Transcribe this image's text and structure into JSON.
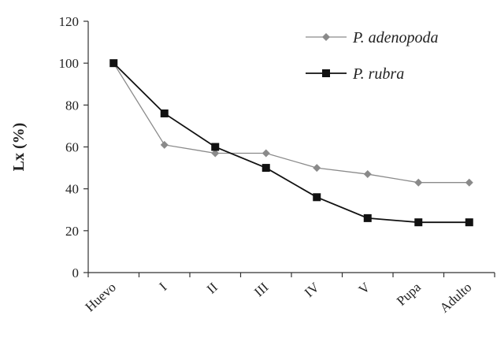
{
  "chart_data": {
    "type": "line",
    "categories": [
      "Huevo",
      "I",
      "II",
      "III",
      "IV",
      "V",
      "Pupa",
      "Adulto"
    ],
    "ylabel": "Lx (%)",
    "xlabel": "",
    "ylim": [
      0,
      120
    ],
    "yticks": [
      0,
      20,
      40,
      60,
      80,
      100,
      120
    ],
    "grid": false,
    "legend_position": "top-right",
    "series": [
      {
        "name": "P. adenopoda",
        "values": [
          100,
          61,
          57,
          57,
          50,
          47,
          43,
          43
        ],
        "color": "#8a8a8a",
        "marker": "diamond"
      },
      {
        "name": "P. rubra",
        "values": [
          100,
          76,
          60,
          50,
          36,
          26,
          24,
          24
        ],
        "color": "#111111",
        "marker": "square"
      }
    ]
  }
}
